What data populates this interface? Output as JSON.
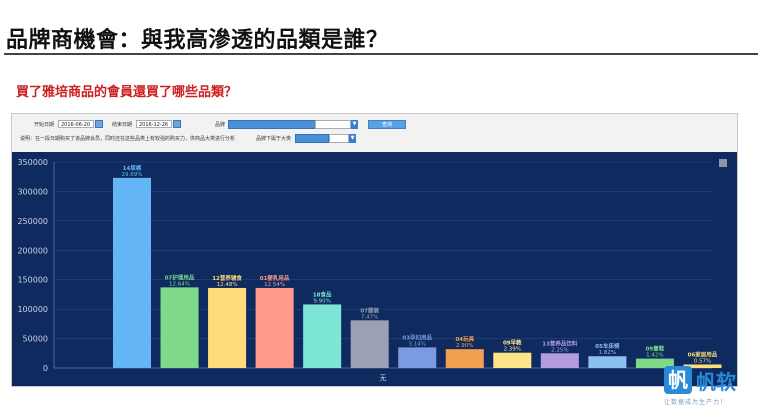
{
  "page": {
    "title": "品牌商機會：與我高滲透的品類是誰？",
    "subtitle": "買了雅培商品的會員還買了哪些品類？"
  },
  "filters": {
    "start_label": "开始日期",
    "start_value": "2016-06-20",
    "end_label": "结束日期",
    "end_value": "2016-12-26",
    "brand_label": "品牌",
    "note": "说明：在一段日期购买了该品牌会员，同时还在这些品类上有较强的购买力，供商品大类进行分析",
    "category_label": "品牌下属于大类",
    "query_button": "查询"
  },
  "logo": {
    "mark": "帆",
    "name": "帆软",
    "slogan": "让数据成为生产力！"
  },
  "colors": {
    "chart_bg": "#0e2a5e",
    "title_red": "#cc1f1f",
    "brand_blue": "#2a8ad8"
  },
  "chart_data": {
    "type": "bar",
    "xlabel": "无",
    "ylabel": "",
    "ylim": [
      0,
      350000
    ],
    "yticks": [
      0,
      50000,
      100000,
      150000,
      200000,
      250000,
      300000,
      350000
    ],
    "grid": true,
    "categories": [
      "14尿裤",
      "07护理用品",
      "12营养辅食",
      "01婴乳用品",
      "18食品",
      "07婴装",
      "03孕妇用品",
      "04玩具",
      "09早教",
      "13营养品饮料",
      "05车床椅",
      "09童鞋",
      "06家居用品"
    ],
    "values": [
      323000,
      137000,
      136000,
      136000,
      108000,
      81000,
      35000,
      32000,
      26000,
      25000,
      20000,
      16000,
      6000
    ],
    "percent_labels": [
      "29.69%",
      "12.64%",
      "12.48%",
      "12.54%",
      "9.90%",
      "7.47%",
      "3.14%",
      "2.90%",
      "2.39%",
      "2.25%",
      "1.82%",
      "1.42%",
      "0.57%"
    ],
    "bar_colors": [
      "#64b5f6",
      "#7ed98a",
      "#ffdc7a",
      "#ff9a8c",
      "#7ee6d6",
      "#9aa0b5",
      "#7b9be0",
      "#f0a050",
      "#ffe58a",
      "#b49be0",
      "#8cc0f0",
      "#7ed98a",
      "#ffdc7a"
    ]
  }
}
